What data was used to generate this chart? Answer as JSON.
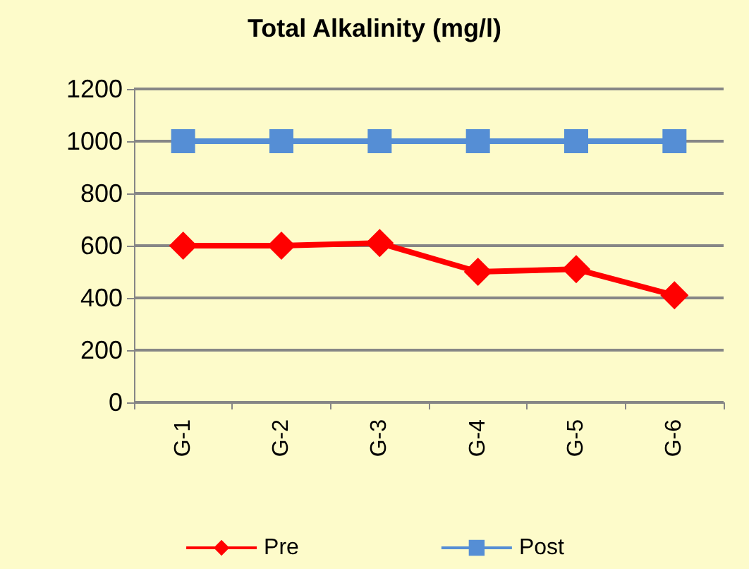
{
  "chart_data": {
    "type": "line",
    "title": "Total Alkalinity (mg/l)",
    "categories": [
      "G-1",
      "G-2",
      "G-3",
      "G-4",
      "G-5",
      "G-6"
    ],
    "series": [
      {
        "name": "Pre",
        "color": "#ff0000",
        "marker": "diamond",
        "values": [
          600,
          600,
          610,
          500,
          510,
          410
        ]
      },
      {
        "name": "Post",
        "color": "#558ed5",
        "marker": "square",
        "values": [
          1000,
          1000,
          1000,
          1000,
          1000,
          1000
        ]
      }
    ],
    "ylim": [
      0,
      1200
    ],
    "yticks": [
      0,
      200,
      400,
      600,
      800,
      1000,
      1200
    ],
    "grid": "y",
    "legend": "bottom"
  }
}
